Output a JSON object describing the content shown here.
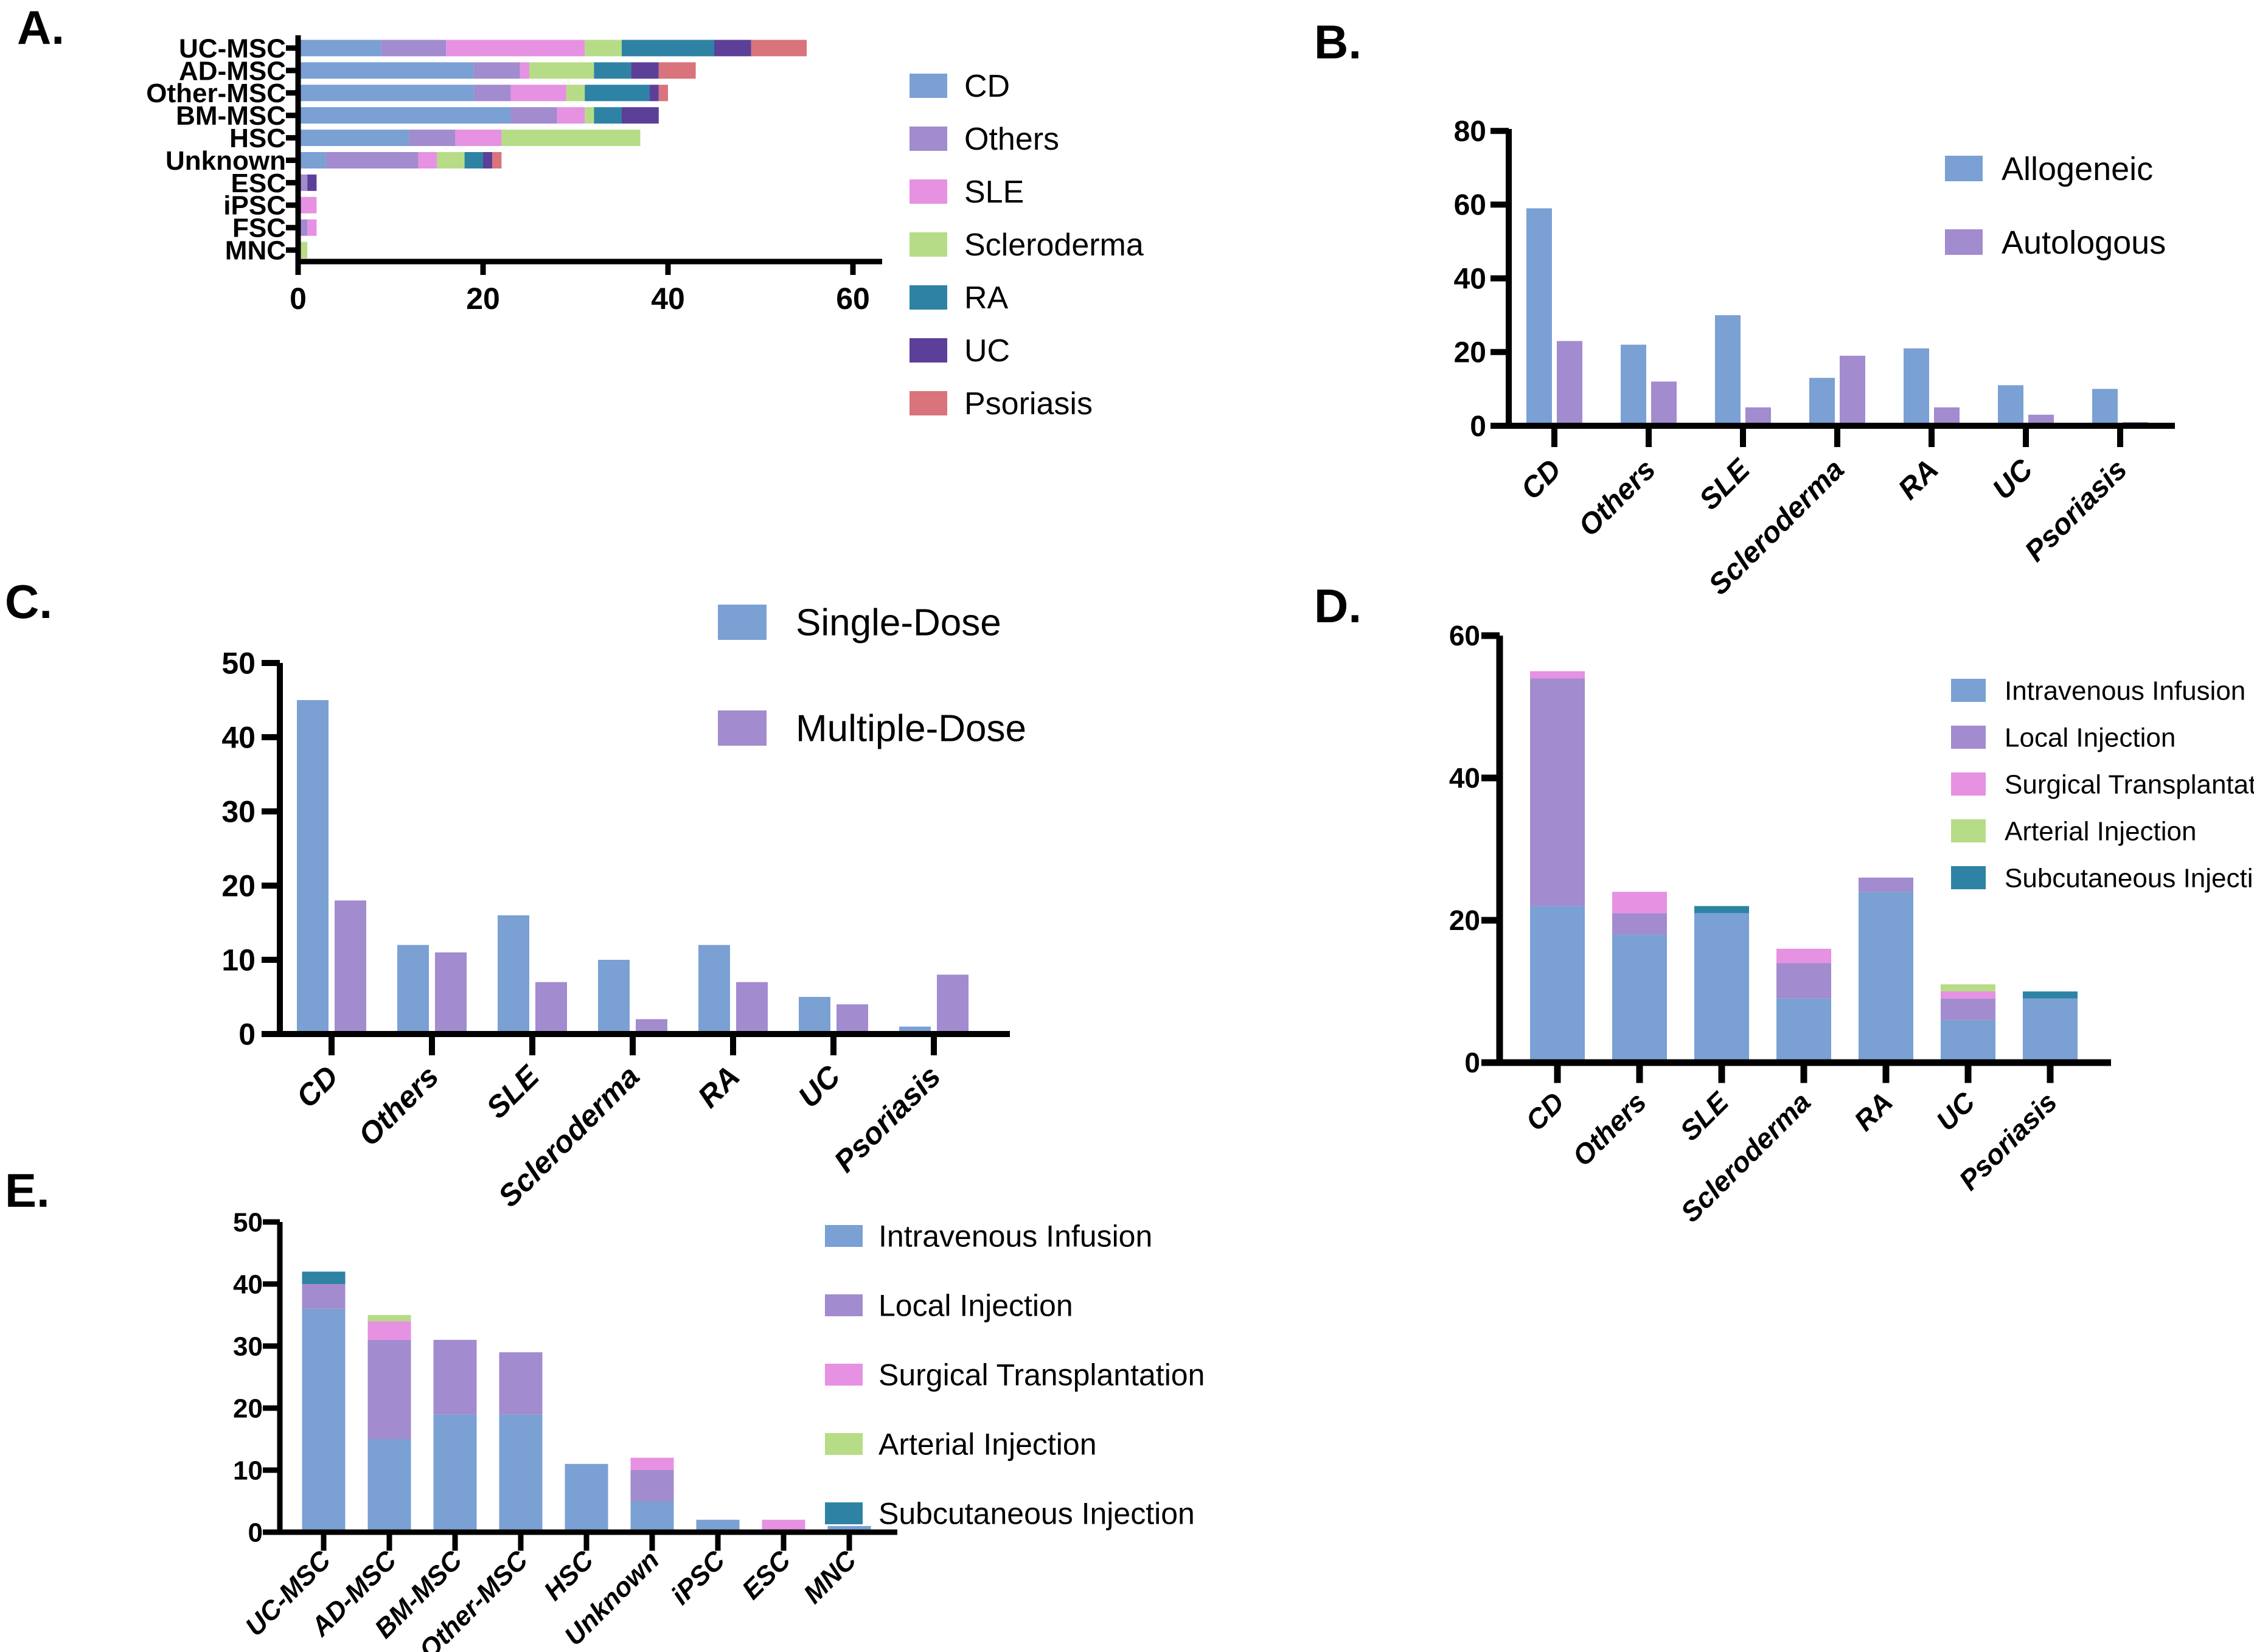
{
  "figure": {
    "background": "#ffffff"
  },
  "palette": {
    "blue": "#7AA0D4",
    "purple": "#A28BCE",
    "pink": "#E691E2",
    "green": "#B6DC87",
    "teal": "#2E83A5",
    "dark_purple": "#5C3F99",
    "salmon": "#D9737C"
  },
  "chart_data": [
    {
      "id": "A",
      "panel_label": "A.",
      "type": "bar",
      "variant": "stacked-horizontal",
      "title": "",
      "categories": [
        "UC-MSC",
        "AD-MSC",
        "Other-MSC",
        "BM-MSC",
        "HSC",
        "Unknown",
        "ESC",
        "iPSC",
        "FSC",
        "MNC"
      ],
      "series": [
        {
          "name": "CD",
          "color": "#7AA0D4",
          "values": [
            9,
            19,
            19,
            23,
            12,
            3,
            0,
            0,
            0,
            0
          ]
        },
        {
          "name": "Others",
          "color": "#A28BCE",
          "values": [
            7,
            5,
            4,
            5,
            5,
            10,
            1,
            0,
            1,
            0
          ]
        },
        {
          "name": "SLE",
          "color": "#E691E2",
          "values": [
            15,
            1,
            6,
            3,
            5,
            2,
            0,
            2,
            1,
            0
          ]
        },
        {
          "name": "Scleroderma",
          "color": "#B6DC87",
          "values": [
            4,
            7,
            2,
            1,
            15,
            3,
            0,
            0,
            0,
            1
          ]
        },
        {
          "name": "RA",
          "color": "#2E83A5",
          "values": [
            10,
            4,
            7,
            3,
            0,
            2,
            0,
            0,
            0,
            0
          ]
        },
        {
          "name": "UC",
          "color": "#5C3F99",
          "values": [
            4,
            3,
            1,
            4,
            0,
            1,
            1,
            0,
            0,
            0
          ]
        },
        {
          "name": "Psoriasis",
          "color": "#D9737C",
          "values": [
            6,
            4,
            1,
            0,
            0,
            1,
            0,
            0,
            0,
            0
          ]
        }
      ],
      "value_axis": {
        "min": 0,
        "max": 62,
        "ticks": [
          0,
          20,
          40,
          60
        ]
      },
      "legend": {
        "position": "right"
      },
      "grid": false
    },
    {
      "id": "B",
      "panel_label": "B.",
      "type": "bar",
      "variant": "grouped-vertical",
      "title": "",
      "categories": [
        "CD",
        "Others",
        "SLE",
        "Scleroderma",
        "RA",
        "UC",
        "Psoriasis"
      ],
      "series": [
        {
          "name": "Allogeneic",
          "color": "#7AA0D4",
          "values": [
            59,
            22,
            30,
            13,
            21,
            11,
            10
          ]
        },
        {
          "name": "Autologous",
          "color": "#A28BCE",
          "values": [
            23,
            12,
            5,
            19,
            5,
            3,
            1
          ]
        }
      ],
      "value_axis": {
        "min": 0,
        "max": 80,
        "ticks": [
          0,
          20,
          40,
          60,
          80
        ]
      },
      "legend": {
        "position": "top-right"
      },
      "grid": false
    },
    {
      "id": "C",
      "panel_label": "C.",
      "type": "bar",
      "variant": "grouped-vertical",
      "title": "",
      "categories": [
        "CD",
        "Others",
        "SLE",
        "Scleroderma",
        "RA",
        "UC",
        "Psoriasis"
      ],
      "series": [
        {
          "name": "Single-Dose",
          "color": "#7AA0D4",
          "values": [
            45,
            12,
            16,
            10,
            12,
            5,
            1
          ]
        },
        {
          "name": "Multiple-Dose",
          "color": "#A28BCE",
          "values": [
            18,
            11,
            7,
            2,
            7,
            4,
            8
          ]
        }
      ],
      "value_axis": {
        "min": 0,
        "max": 50,
        "ticks": [
          0,
          10,
          20,
          30,
          40,
          50
        ]
      },
      "legend": {
        "position": "top-right"
      },
      "grid": false
    },
    {
      "id": "D",
      "panel_label": "D.",
      "type": "bar",
      "variant": "stacked-vertical",
      "title": "",
      "categories": [
        "CD",
        "Others",
        "SLE",
        "Scleroderma",
        "RA",
        "UC",
        "Psoriasis"
      ],
      "series": [
        {
          "name": "Intravenous Infusion",
          "color": "#7AA0D4",
          "values": [
            22,
            18,
            21,
            9,
            24,
            6,
            9
          ]
        },
        {
          "name": "Local Injection",
          "color": "#A28BCE",
          "values": [
            32,
            3,
            0,
            5,
            2,
            3,
            0
          ]
        },
        {
          "name": "Surgical Transplantation",
          "color": "#E691E2",
          "values": [
            1,
            3,
            0,
            2,
            0,
            1,
            0
          ]
        },
        {
          "name": "Arterial Injection",
          "color": "#B6DC87",
          "values": [
            0,
            0,
            0,
            0,
            0,
            1,
            0
          ]
        },
        {
          "name": "Subcutaneous Injection",
          "color": "#2E83A5",
          "values": [
            0,
            0,
            1,
            0,
            0,
            0,
            1
          ]
        }
      ],
      "value_axis": {
        "min": 0,
        "max": 60,
        "ticks": [
          0,
          20,
          40,
          60
        ]
      },
      "legend": {
        "position": "right"
      },
      "grid": false
    },
    {
      "id": "E",
      "panel_label": "E.",
      "type": "bar",
      "variant": "stacked-vertical",
      "title": "",
      "categories": [
        "UC-MSC",
        "AD-MSC",
        "BM-MSC",
        "Other-MSC",
        "HSC",
        "Unknown",
        "iPSC",
        "ESC",
        "MNC"
      ],
      "series": [
        {
          "name": "Intravenous Infusion",
          "color": "#7AA0D4",
          "values": [
            36,
            15,
            19,
            19,
            11,
            5,
            2,
            0,
            1
          ]
        },
        {
          "name": "Local Injection",
          "color": "#A28BCE",
          "values": [
            4,
            16,
            12,
            10,
            0,
            5,
            0,
            0,
            0
          ]
        },
        {
          "name": "Surgical Transplantation",
          "color": "#E691E2",
          "values": [
            0,
            3,
            0,
            0,
            0,
            2,
            0,
            2,
            0
          ]
        },
        {
          "name": "Arterial Injection",
          "color": "#B6DC87",
          "values": [
            0,
            1,
            0,
            0,
            0,
            0,
            0,
            0,
            0
          ]
        },
        {
          "name": "Subcutaneous Injection",
          "color": "#2E83A5",
          "values": [
            2,
            0,
            0,
            0,
            0,
            0,
            0,
            0,
            0
          ]
        }
      ],
      "value_axis": {
        "min": 0,
        "max": 50,
        "ticks": [
          0,
          10,
          20,
          30,
          40,
          50
        ]
      },
      "legend": {
        "position": "right"
      },
      "grid": false
    }
  ]
}
